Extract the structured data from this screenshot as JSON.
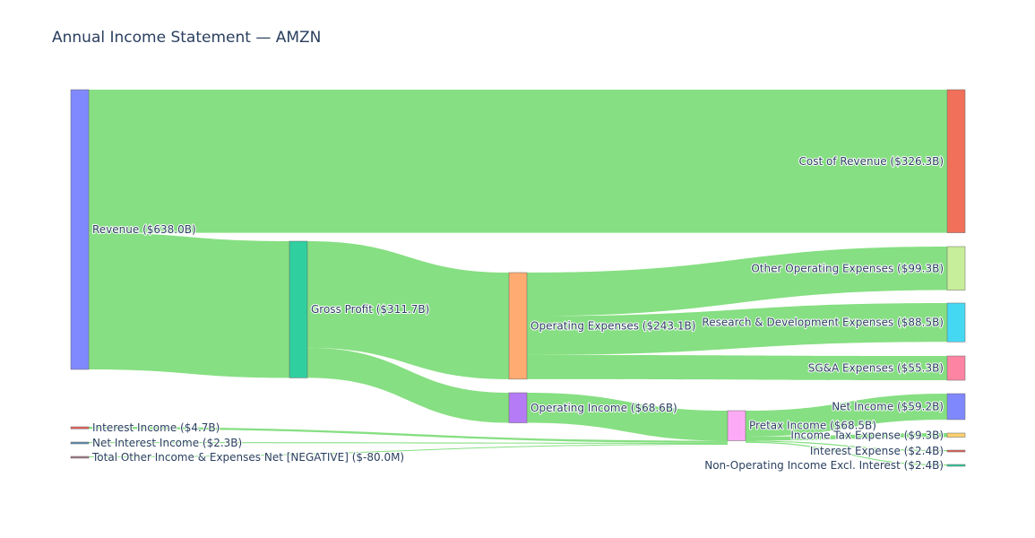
{
  "chart_data": {
    "type": "sankey",
    "title": "Annual Income Statement — AMZN",
    "link_color": "#86df82",
    "nodes": [
      {
        "id": "revenue",
        "label": "Revenue ($638.0B)",
        "value": 638.0,
        "color": "#8088fe"
      },
      {
        "id": "gross_profit",
        "label": "Gross Profit ($311.7B)",
        "value": 311.7,
        "color": "#2fcf9f"
      },
      {
        "id": "cost_of_revenue",
        "label": "Cost of Revenue ($326.3B)",
        "value": 326.3,
        "color": "#f0705a"
      },
      {
        "id": "operating_expenses",
        "label": "Operating Expenses ($243.1B)",
        "value": 243.1,
        "color": "#ffab72"
      },
      {
        "id": "operating_income",
        "label": "Operating Income ($68.6B)",
        "value": 68.6,
        "color": "#b57bf7"
      },
      {
        "id": "other_operating_expenses",
        "label": "Other Operating Expenses ($99.3B)",
        "value": 99.3,
        "color": "#c7ee9a"
      },
      {
        "id": "research_development",
        "label": "Research & Development Expenses ($88.5B)",
        "value": 88.5,
        "color": "#45d8f2"
      },
      {
        "id": "sga_expenses",
        "label": "SG&A Expenses ($55.3B)",
        "value": 55.3,
        "color": "#fe84a3"
      },
      {
        "id": "pretax_income",
        "label": "Pretax Income ($68.5B)",
        "value": 68.5,
        "color": "#fdaaf6"
      },
      {
        "id": "net_income",
        "label": "Net Income ($59.2B)",
        "value": 59.2,
        "color": "#8088fe"
      },
      {
        "id": "income_tax_expense",
        "label": "Income Tax Expense ($9.3B)",
        "value": 9.3,
        "color": "#fcd072"
      },
      {
        "id": "interest_expense",
        "label": "Interest Expense ($2.4B)",
        "value": 2.4,
        "color": "#e8605a"
      },
      {
        "id": "non_operating_income",
        "label": "Non-Operating Income Excl. Interest ($2.4B)",
        "value": 2.4,
        "color": "#2fcf9f"
      },
      {
        "id": "interest_income",
        "label": "Interest Income ($4.7B)",
        "value": 4.7,
        "color": "#e8605a"
      },
      {
        "id": "net_interest_income",
        "label": "Net Interest Income ($2.3B)",
        "value": 2.3,
        "color": "#5a8fb8"
      },
      {
        "id": "total_other_income",
        "label": "Total Other Income & Expenses Net [NEGATIVE] ($-80.0M)",
        "value": 0.08,
        "color": "#a87a8a"
      }
    ],
    "links": [
      {
        "source": "revenue",
        "target": "cost_of_revenue",
        "value": 326.3
      },
      {
        "source": "revenue",
        "target": "gross_profit",
        "value": 311.7
      },
      {
        "source": "gross_profit",
        "target": "operating_expenses",
        "value": 243.1
      },
      {
        "source": "gross_profit",
        "target": "operating_income",
        "value": 68.6
      },
      {
        "source": "operating_expenses",
        "target": "other_operating_expenses",
        "value": 99.3
      },
      {
        "source": "operating_expenses",
        "target": "research_development",
        "value": 88.5
      },
      {
        "source": "operating_expenses",
        "target": "sga_expenses",
        "value": 55.3
      },
      {
        "source": "operating_income",
        "target": "pretax_income",
        "value": 68.6
      },
      {
        "source": "interest_income",
        "target": "pretax_income",
        "value": 4.7
      },
      {
        "source": "net_interest_income",
        "target": "pretax_income",
        "value": 2.3
      },
      {
        "source": "total_other_income",
        "target": "pretax_income",
        "value": 0.08
      },
      {
        "source": "pretax_income",
        "target": "net_income",
        "value": 59.2
      },
      {
        "source": "pretax_income",
        "target": "income_tax_expense",
        "value": 9.3
      },
      {
        "source": "pretax_income",
        "target": "interest_expense",
        "value": 2.4
      },
      {
        "source": "pretax_income",
        "target": "non_operating_income",
        "value": 2.4
      }
    ]
  }
}
